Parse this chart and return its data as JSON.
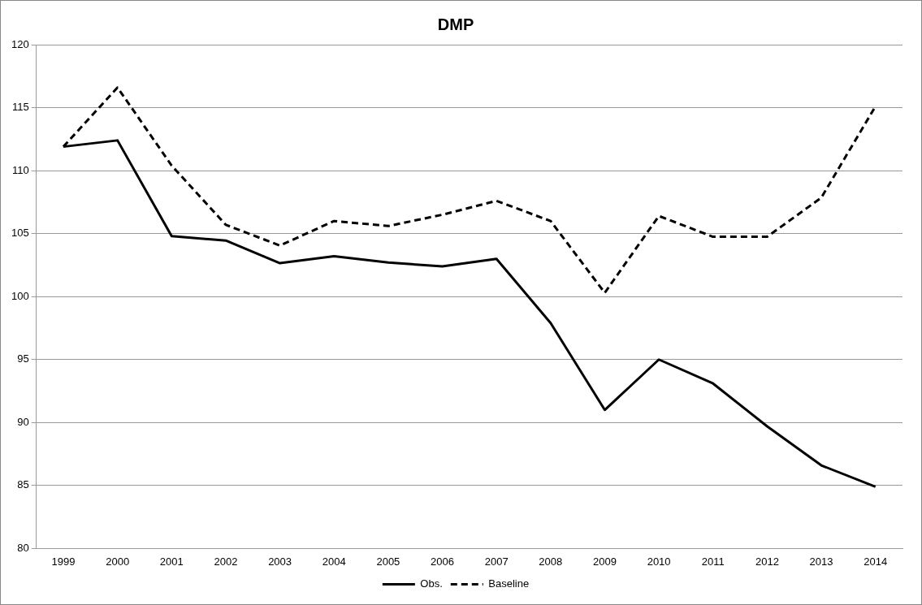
{
  "chart_data": {
    "type": "line",
    "title": "DMP",
    "categories": [
      "1999",
      "2000",
      "2001",
      "2002",
      "2003",
      "2004",
      "2005",
      "2006",
      "2007",
      "2008",
      "2009",
      "2010",
      "2011",
      "2012",
      "2013",
      "2014"
    ],
    "series": [
      {
        "name": "Obs.",
        "color": "#000000",
        "line_style": "solid",
        "values": [
          111.9,
          112.4,
          104.8,
          104.45,
          102.65,
          103.2,
          102.7,
          102.4,
          103.0,
          97.9,
          91.0,
          95.0,
          93.1,
          89.7,
          86.6,
          84.9
        ]
      },
      {
        "name": "Baseline",
        "color": "#000000",
        "line_style": "dashed",
        "values": [
          111.9,
          116.6,
          110.4,
          105.7,
          104.05,
          106.0,
          105.6,
          106.5,
          107.6,
          106.0,
          100.3,
          106.4,
          104.75,
          104.75,
          107.85,
          115.1
        ]
      }
    ],
    "ylim": [
      80,
      120
    ],
    "yticks": [
      80,
      85,
      90,
      95,
      100,
      105,
      110,
      115,
      120
    ],
    "grid": "y",
    "legend": "bottom",
    "marker": "none"
  }
}
